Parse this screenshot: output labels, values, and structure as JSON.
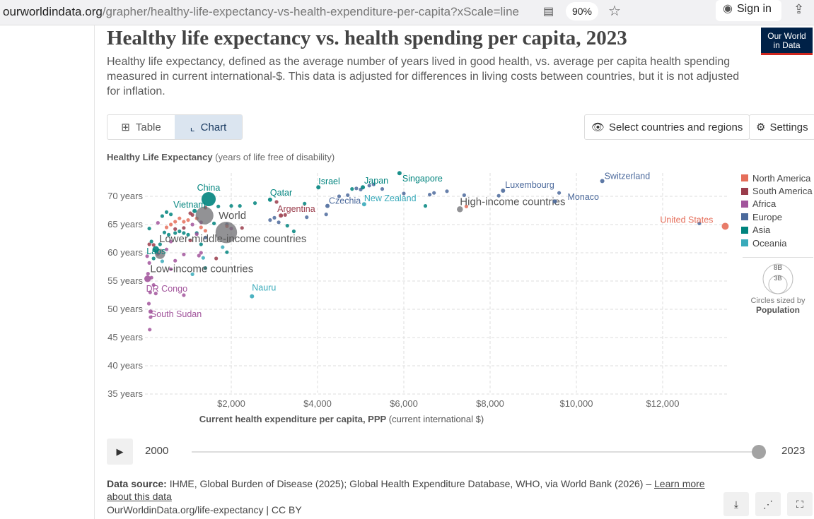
{
  "browser": {
    "url_host": "ourworldindata.org",
    "url_path": "/grapher/healthy-life-expectancy-vs-health-expenditure-per-capita?xScale=line",
    "zoom": "90%",
    "sign_in": "Sign in"
  },
  "header": {
    "title": "Healthy life expectancy vs. health spending per capita, 2023",
    "subtitle": "Healthy life expectancy, defined as the average number of years lived in good health, vs. average per capita health spending measured in current international-$. This data is adjusted for differences in living costs between countries, but it is not adjusted for inflation.",
    "logo": "Our World in Data"
  },
  "controls": {
    "tab_table": "Table",
    "tab_chart": "Chart",
    "select_countries": "Select countries and regions",
    "settings": "Settings"
  },
  "timeline": {
    "start": "2000",
    "end": "2023",
    "progress": 1.0
  },
  "footer": {
    "source_label": "Data source:",
    "source_text": "IHME, Global Burden of Disease (2025); Global Health Expenditure Database, WHO, via World Bank (2026) – ",
    "learn_more": "Learn more about this data",
    "license": "OurWorldinData.org/life-expectancy | CC BY"
  },
  "colors": {
    "North America": "#e56e5a",
    "South America": "#9a3c4b",
    "Africa": "#a2559c",
    "Europe": "#4c6a9c",
    "Asia": "#00847e",
    "Oceania": "#38aaba",
    "Aggregate": "#6d6d72"
  },
  "chart_data": {
    "type": "scatter",
    "title": "Healthy life expectancy vs. health spending per capita, 2023",
    "ylabel_bold": "Healthy Life Expectancy",
    "ylabel_rest": " (years of life free of disability)",
    "xlabel_bold": "Current health expenditure per capita, PPP",
    "xlabel_rest": " (current international $)",
    "xlim": [
      0,
      14000
    ],
    "ylim": [
      35,
      74
    ],
    "xticks": [
      {
        "v": 2000,
        "label": "$2,000"
      },
      {
        "v": 4000,
        "label": "$4,000"
      },
      {
        "v": 6000,
        "label": "$6,000"
      },
      {
        "v": 8000,
        "label": "$8,000"
      },
      {
        "v": 10000,
        "label": "$10,000"
      },
      {
        "v": 12000,
        "label": "$12,000"
      }
    ],
    "yticks": [
      {
        "v": 35,
        "label": "35 years"
      },
      {
        "v": 40,
        "label": "40 years"
      },
      {
        "v": 45,
        "label": "45 years"
      },
      {
        "v": 50,
        "label": "50 years"
      },
      {
        "v": 55,
        "label": "55 years"
      },
      {
        "v": 60,
        "label": "60 years"
      },
      {
        "v": 65,
        "label": "65 years"
      },
      {
        "v": 70,
        "label": "70 years"
      }
    ],
    "grid": true,
    "legend": [
      "North America",
      "South America",
      "Africa",
      "Europe",
      "Asia",
      "Oceania"
    ],
    "size_legend": {
      "large": "8B",
      "small": "3B",
      "caption": "Circles sized by",
      "variable": "Population"
    },
    "labeled_points": [
      {
        "name": "World",
        "x": 1380,
        "y": 66.6,
        "region": "Aggregate",
        "pop": 2.2
      },
      {
        "name": "Lower-middle-income countries",
        "x": 1885,
        "y": 63.6,
        "region": "Aggregate",
        "pop": 3.2
      },
      {
        "name": "High-income countries",
        "x": 7300,
        "y": 67.7,
        "region": "Aggregate",
        "pop": 0.25
      },
      {
        "name": "Low-income countries",
        "x": 350,
        "y": 59.8,
        "region": "Aggregate",
        "pop": 0.7
      },
      {
        "name": "China",
        "x": 1475,
        "y": 69.5,
        "region": "Asia",
        "pop": 1.4
      },
      {
        "name": "Vietnam",
        "x": 1150,
        "y": 67.4,
        "region": "Asia",
        "pop": 0.1
      },
      {
        "name": "Laos",
        "x": 250,
        "y": 60.6,
        "region": "Asia",
        "pop": 0.3
      },
      {
        "name": "Qatar",
        "x": 2900,
        "y": 69.4,
        "region": "Asia",
        "pop": 0
      },
      {
        "name": "Argentina",
        "x": 3150,
        "y": 66.6,
        "region": "South America",
        "pop": 0
      },
      {
        "name": "Israel",
        "x": 4020,
        "y": 71.6,
        "region": "Asia",
        "pop": 0
      },
      {
        "name": "Czechia",
        "x": 4230,
        "y": 68.3,
        "region": "Europe",
        "pop": 0
      },
      {
        "name": "Japan",
        "x": 5050,
        "y": 71.6,
        "region": "Asia",
        "pop": 0
      },
      {
        "name": "New Zealand",
        "x": 5080,
        "y": 68.6,
        "region": "Oceania",
        "pop": 0
      },
      {
        "name": "Singapore",
        "x": 5900,
        "y": 74.1,
        "region": "Asia",
        "pop": 0
      },
      {
        "name": "Luxembourg",
        "x": 8300,
        "y": 71.0,
        "region": "Europe",
        "pop": 0
      },
      {
        "name": "Monaco",
        "x": 9500,
        "y": 69.1,
        "region": "Europe",
        "pop": 0
      },
      {
        "name": "Switzerland",
        "x": 10600,
        "y": 72.7,
        "region": "Europe",
        "pop": 0
      },
      {
        "name": "United States",
        "x": 13450,
        "y": 64.7,
        "region": "North America",
        "pop": 0.34
      },
      {
        "name": "DR Congo",
        "x": 60,
        "y": 55.4,
        "region": "Africa",
        "pop": 0.3
      },
      {
        "name": "South Sudan",
        "x": 130,
        "y": 49.6,
        "region": "Africa",
        "pop": 0
      },
      {
        "name": "Nauru",
        "x": 2480,
        "y": 52.3,
        "region": "Oceania",
        "pop": 0
      }
    ],
    "other_points": [
      [
        400,
        66.5,
        "Asia"
      ],
      [
        500,
        67.2,
        "Asia"
      ],
      [
        600,
        66.8,
        "Asia"
      ],
      [
        1200,
        63.5,
        "Asia"
      ],
      [
        1300,
        61.5,
        "Asia"
      ],
      [
        800,
        63.8,
        "Asia"
      ],
      [
        900,
        63.5,
        "Asia"
      ],
      [
        1000,
        63.2,
        "Asia"
      ],
      [
        1700,
        68.2,
        "Asia"
      ],
      [
        2200,
        68.3,
        "Asia"
      ],
      [
        2550,
        68.8,
        "Asia"
      ],
      [
        3700,
        68.7,
        "Asia"
      ],
      [
        3300,
        64.8,
        "Asia"
      ],
      [
        1600,
        65.2,
        "Asia"
      ],
      [
        3450,
        63.8,
        "Asia"
      ],
      [
        100,
        64.3,
        "Asia"
      ],
      [
        150,
        62,
        "Asia"
      ],
      [
        1900,
        60.1,
        "Asia"
      ],
      [
        1400,
        57.3,
        "Asia"
      ],
      [
        200,
        59,
        "Asia"
      ],
      [
        350,
        61.5,
        "Asia"
      ],
      [
        700,
        63.5,
        "Asia"
      ],
      [
        2000,
        68.3,
        "Asia"
      ],
      [
        450,
        63.6,
        "Asia"
      ],
      [
        550,
        63.2,
        "Asia"
      ],
      [
        4800,
        71.3,
        "Asia"
      ],
      [
        6500,
        68.3,
        "Asia"
      ],
      [
        50,
        59.4,
        "Africa"
      ],
      [
        100,
        58.2,
        "Africa"
      ],
      [
        70,
        56.3,
        "Africa"
      ],
      [
        150,
        55.6,
        "Africa"
      ],
      [
        120,
        53,
        "Africa"
      ],
      [
        200,
        54.3,
        "Africa"
      ],
      [
        90,
        51,
        "Africa"
      ],
      [
        130,
        48.6,
        "Africa"
      ],
      [
        110,
        46.4,
        "Africa"
      ],
      [
        300,
        59.8,
        "Africa"
      ],
      [
        600,
        62,
        "Africa"
      ],
      [
        1300,
        60,
        "Africa"
      ],
      [
        1250,
        59.5,
        "Africa"
      ],
      [
        900,
        59.7,
        "Africa"
      ],
      [
        700,
        58.6,
        "Africa"
      ],
      [
        600,
        57.1,
        "Africa"
      ],
      [
        900,
        52.5,
        "Africa"
      ],
      [
        500,
        60.6,
        "Africa"
      ],
      [
        1100,
        65,
        "Africa"
      ],
      [
        1300,
        65.4,
        "Africa"
      ],
      [
        2000,
        64.3,
        "Africa"
      ],
      [
        300,
        65.3,
        "Africa"
      ],
      [
        1200,
        63.3,
        "Africa"
      ],
      [
        250,
        52.8,
        "Africa"
      ],
      [
        3000,
        66.2,
        "Europe"
      ],
      [
        2900,
        65.8,
        "Europe"
      ],
      [
        3100,
        65.4,
        "Europe"
      ],
      [
        4200,
        66.8,
        "Europe"
      ],
      [
        4700,
        70.2,
        "Europe"
      ],
      [
        4900,
        71.4,
        "Europe"
      ],
      [
        5000,
        71.2,
        "Europe"
      ],
      [
        5300,
        72.1,
        "Europe"
      ],
      [
        5200,
        71.9,
        "Europe"
      ],
      [
        5500,
        71.3,
        "Europe"
      ],
      [
        6000,
        70.5,
        "Europe"
      ],
      [
        6700,
        70.6,
        "Europe"
      ],
      [
        6600,
        70.3,
        "Europe"
      ],
      [
        7000,
        70.9,
        "Europe"
      ],
      [
        8200,
        70.1,
        "Europe"
      ],
      [
        9600,
        70.6,
        "Europe"
      ],
      [
        3750,
        66.3,
        "Europe"
      ],
      [
        4500,
        70,
        "Europe"
      ],
      [
        1900,
        65,
        "Europe"
      ],
      [
        1400,
        62.7,
        "Europe"
      ],
      [
        12850,
        65.2,
        "Europe"
      ],
      [
        7400,
        70.2,
        "Europe"
      ],
      [
        100,
        61.5,
        "South America"
      ],
      [
        200,
        61.4,
        "South America"
      ],
      [
        1050,
        67,
        "South America"
      ],
      [
        1400,
        68,
        "South America"
      ],
      [
        1100,
        66.7,
        "South America"
      ],
      [
        2250,
        64.4,
        "South America"
      ],
      [
        3050,
        69,
        "South America"
      ],
      [
        3250,
        66.7,
        "South America"
      ],
      [
        1650,
        59,
        "South America"
      ],
      [
        700,
        64.2,
        "South America"
      ],
      [
        1050,
        62.2,
        "South America"
      ],
      [
        900,
        64.4,
        "South America"
      ],
      [
        600,
        65,
        "North America"
      ],
      [
        700,
        65.5,
        "North America"
      ],
      [
        900,
        65.5,
        "North America"
      ],
      [
        800,
        66.1,
        "North America"
      ],
      [
        1000,
        65.8,
        "North America"
      ],
      [
        1200,
        66.1,
        "North America"
      ],
      [
        1300,
        64.5,
        "North America"
      ],
      [
        1400,
        63.9,
        "North America"
      ],
      [
        1900,
        64.7,
        "North America"
      ],
      [
        500,
        64.5,
        "North America"
      ],
      [
        7450,
        68.2,
        "North America"
      ],
      [
        1800,
        61,
        "Oceania"
      ],
      [
        1100,
        56.2,
        "Oceania"
      ],
      [
        1350,
        59.1,
        "Oceania"
      ],
      [
        400,
        58.5,
        "Oceania"
      ]
    ]
  }
}
